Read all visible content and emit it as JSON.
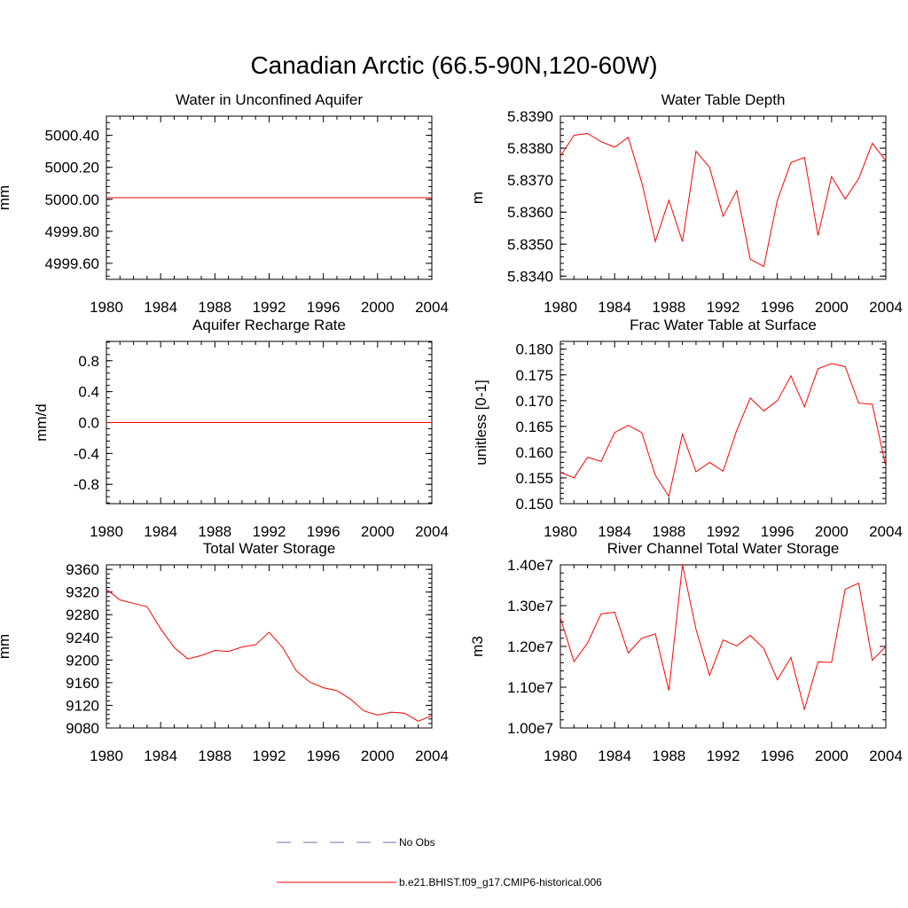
{
  "title": "Canadian Arctic (66.5-90N,120-60W)",
  "colors": {
    "model": "#ff0000",
    "obs": "#6f6fbf",
    "axis": "#000000"
  },
  "legend": {
    "entries": [
      {
        "label": "No Obs",
        "style": "dashed",
        "color": "#6f6fbf"
      },
      {
        "label": "b.e21.BHIST.f09_g17.CMIP6-historical.006",
        "style": "solid",
        "color": "#ff0000"
      }
    ]
  },
  "chart_data": [
    {
      "type": "line",
      "title": "Water in Unconfined Aquifer",
      "ylabel": "mm",
      "xlim": [
        1980,
        2004
      ],
      "ylim": [
        4999.5,
        5000.52
      ],
      "xticks": [
        "1980",
        "1984",
        "1988",
        "1992",
        "1996",
        "2000",
        "2004"
      ],
      "yticks": [
        {
          "v": 4999.6,
          "label": "4999.60"
        },
        {
          "v": 4999.8,
          "label": "4999.80"
        },
        {
          "v": 5000.0,
          "label": "5000.00"
        },
        {
          "v": 5000.2,
          "label": "5000.20"
        },
        {
          "v": 5000.4,
          "label": "5000.40"
        }
      ],
      "x": [
        1980,
        1981,
        1982,
        1983,
        1984,
        1985,
        1986,
        1987,
        1988,
        1989,
        1990,
        1991,
        1992,
        1993,
        1994,
        1995,
        1996,
        1997,
        1998,
        1999,
        2000,
        2001,
        2002,
        2003,
        2004
      ],
      "series": [
        {
          "values": [
            5000.01,
            5000.01,
            5000.01,
            5000.01,
            5000.01,
            5000.01,
            5000.01,
            5000.01,
            5000.01,
            5000.01,
            5000.01,
            5000.01,
            5000.01,
            5000.01,
            5000.01,
            5000.01,
            5000.01,
            5000.01,
            5000.01,
            5000.01,
            5000.01,
            5000.01,
            5000.01,
            5000.01,
            5000.01
          ]
        }
      ]
    },
    {
      "type": "line",
      "title": "Water Table Depth",
      "ylabel": "m",
      "xlim": [
        1980,
        2004
      ],
      "ylim": [
        5.8339,
        5.839
      ],
      "xticks": [
        "1980",
        "1984",
        "1988",
        "1992",
        "1996",
        "2000",
        "2004"
      ],
      "yticks": [
        {
          "v": 5.834,
          "label": "5.8340"
        },
        {
          "v": 5.835,
          "label": "5.8350"
        },
        {
          "v": 5.836,
          "label": "5.8360"
        },
        {
          "v": 5.837,
          "label": "5.8370"
        },
        {
          "v": 5.838,
          "label": "5.8380"
        },
        {
          "v": 5.839,
          "label": "5.8390"
        }
      ],
      "x": [
        1980,
        1981,
        1982,
        1983,
        1984,
        1985,
        1986,
        1987,
        1988,
        1989,
        1990,
        1991,
        1992,
        1993,
        1994,
        1995,
        1996,
        1997,
        1998,
        1999,
        2000,
        2001,
        2002,
        2003,
        2004
      ],
      "series": [
        {
          "values": [
            5.83775,
            5.8384,
            5.83846,
            5.8382,
            5.83803,
            5.83834,
            5.83693,
            5.83508,
            5.83637,
            5.83508,
            5.8379,
            5.8374,
            5.83587,
            5.83667,
            5.83453,
            5.8343,
            5.83637,
            5.83755,
            5.83771,
            5.83527,
            5.83711,
            5.83641,
            5.83705,
            5.83815,
            5.83761
          ]
        }
      ]
    },
    {
      "type": "line",
      "title": "Aquifer Recharge Rate",
      "ylabel": "mm/d",
      "xlim": [
        1980,
        2004
      ],
      "ylim": [
        -1.05,
        1.05
      ],
      "xticks": [
        "1980",
        "1984",
        "1988",
        "1992",
        "1996",
        "2000",
        "2004"
      ],
      "yticks": [
        {
          "v": -0.8,
          "label": "-0.8"
        },
        {
          "v": -0.4,
          "label": "-0.4"
        },
        {
          "v": 0.0,
          "label": "0.0"
        },
        {
          "v": 0.4,
          "label": "0.4"
        },
        {
          "v": 0.8,
          "label": "0.8"
        }
      ],
      "x": [
        1980,
        1981,
        1982,
        1983,
        1984,
        1985,
        1986,
        1987,
        1988,
        1989,
        1990,
        1991,
        1992,
        1993,
        1994,
        1995,
        1996,
        1997,
        1998,
        1999,
        2000,
        2001,
        2002,
        2003,
        2004
      ],
      "series": [
        {
          "values": [
            0,
            0,
            0,
            0,
            0,
            0,
            0,
            0,
            0,
            0,
            0,
            0,
            0,
            0,
            0,
            0,
            0,
            0,
            0,
            0,
            0,
            0,
            0,
            0,
            0
          ]
        }
      ]
    },
    {
      "type": "line",
      "title": "Frac Water Table at Surface",
      "ylabel": "unitless [0-1]",
      "xlim": [
        1980,
        2004
      ],
      "ylim": [
        0.15,
        0.1815
      ],
      "xticks": [
        "1980",
        "1984",
        "1988",
        "1992",
        "1996",
        "2000",
        "2004"
      ],
      "yticks": [
        {
          "v": 0.15,
          "label": "0.150"
        },
        {
          "v": 0.155,
          "label": "0.155"
        },
        {
          "v": 0.16,
          "label": "0.160"
        },
        {
          "v": 0.165,
          "label": "0.165"
        },
        {
          "v": 0.17,
          "label": "0.170"
        },
        {
          "v": 0.175,
          "label": "0.175"
        },
        {
          "v": 0.18,
          "label": "0.180"
        }
      ],
      "x": [
        1980,
        1981,
        1982,
        1983,
        1984,
        1985,
        1986,
        1987,
        1988,
        1989,
        1990,
        1991,
        1992,
        1993,
        1994,
        1995,
        1996,
        1997,
        1998,
        1999,
        2000,
        2001,
        2002,
        2003,
        2004
      ],
      "series": [
        {
          "values": [
            0.1561,
            0.155,
            0.159,
            0.1582,
            0.1638,
            0.1652,
            0.1638,
            0.1555,
            0.1514,
            0.1635,
            0.1562,
            0.158,
            0.1563,
            0.1642,
            0.1705,
            0.168,
            0.17,
            0.1748,
            0.1688,
            0.1762,
            0.1772,
            0.1766,
            0.1695,
            0.1693,
            0.1572
          ]
        }
      ]
    },
    {
      "type": "line",
      "title": "Total Water Storage",
      "ylabel": "mm",
      "xlim": [
        1980,
        2004
      ],
      "ylim": [
        9080,
        9368
      ],
      "xticks": [
        "1980",
        "1984",
        "1988",
        "1992",
        "1996",
        "2000",
        "2004"
      ],
      "yticks": [
        {
          "v": 9080,
          "label": "9080"
        },
        {
          "v": 9120,
          "label": "9120"
        },
        {
          "v": 9160,
          "label": "9160"
        },
        {
          "v": 9200,
          "label": "9200"
        },
        {
          "v": 9240,
          "label": "9240"
        },
        {
          "v": 9280,
          "label": "9280"
        },
        {
          "v": 9320,
          "label": "9320"
        },
        {
          "v": 9360,
          "label": "9360"
        }
      ],
      "x": [
        1980,
        1981,
        1982,
        1983,
        1984,
        1985,
        1986,
        1987,
        1988,
        1989,
        1990,
        1991,
        1992,
        1993,
        1994,
        1995,
        1996,
        1997,
        1998,
        1999,
        2000,
        2001,
        2002,
        2003,
        2004
      ],
      "series": [
        {
          "values": [
            9325,
            9306,
            9300,
            9294,
            9255,
            9222,
            9202,
            9208,
            9217,
            9215,
            9223,
            9227,
            9249,
            9222,
            9181,
            9161,
            9151,
            9146,
            9131,
            9110,
            9103,
            9108,
            9106,
            9092,
            9102
          ]
        }
      ]
    },
    {
      "type": "line",
      "title": "River Channel Total Water Storage",
      "ylabel": "m3",
      "xlim": [
        1980,
        2004
      ],
      "ylim": [
        10000000,
        14000000
      ],
      "xticks": [
        "1980",
        "1984",
        "1988",
        "1992",
        "1996",
        "2000",
        "2004"
      ],
      "yticks": [
        {
          "v": 10000000,
          "label": "1.00e7"
        },
        {
          "v": 11000000,
          "label": "1.10e7"
        },
        {
          "v": 12000000,
          "label": "1.20e7"
        },
        {
          "v": 13000000,
          "label": "1.30e7"
        },
        {
          "v": 14000000,
          "label": "1.40e7"
        }
      ],
      "x": [
        1980,
        1981,
        1982,
        1983,
        1984,
        1985,
        1986,
        1987,
        1988,
        1989,
        1990,
        1991,
        1992,
        1993,
        1994,
        1995,
        1996,
        1997,
        1998,
        1999,
        2000,
        2001,
        2002,
        2003,
        2004
      ],
      "series": [
        {
          "values": [
            12700000,
            11630000,
            12080000,
            12800000,
            12840000,
            11840000,
            12200000,
            12310000,
            10920000,
            14000000,
            12420000,
            11290000,
            12160000,
            12010000,
            12270000,
            11950000,
            11180000,
            11730000,
            10460000,
            11620000,
            11610000,
            13400000,
            13550000,
            11660000,
            12000000
          ]
        }
      ]
    }
  ]
}
